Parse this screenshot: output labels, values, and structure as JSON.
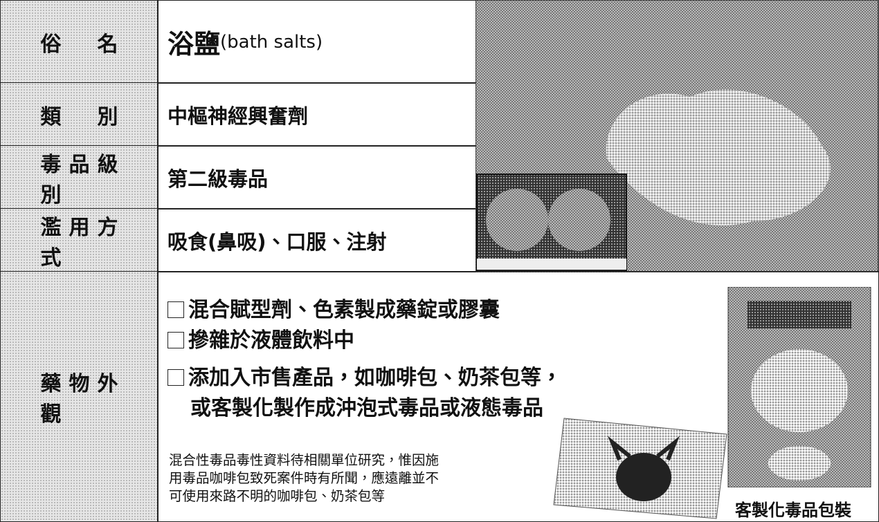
{
  "rows": [
    {
      "label": "俗名",
      "value": "浴鹽",
      "value_note": "(bath salts)"
    },
    {
      "label": "類別",
      "value": "中樞神經興奮劑"
    },
    {
      "label": "毒品級別",
      "value": "第二級毒品"
    },
    {
      "label": "濫用方式",
      "value": "吸食(鼻吸)、口服、注射"
    }
  ],
  "appearance": {
    "label": "藥物外觀",
    "items": [
      "混合賦型劑、色素製成藥錠或膠囊",
      "摻雜於液體飲料中",
      "添加入市售產品，如咖啡包、奶茶包等，"
    ],
    "item_continuation": "或客製化製作成沖泡式毒品或液態毒品",
    "note": [
      "混合性毒品毒性資料待相關單位研究，惟因施",
      "用毒品咖啡包致死案件時有所聞，應遠離並不",
      "可使用來路不明的咖啡包、奶茶包等"
    ],
    "image_caption": "客製化毒品包裝"
  }
}
